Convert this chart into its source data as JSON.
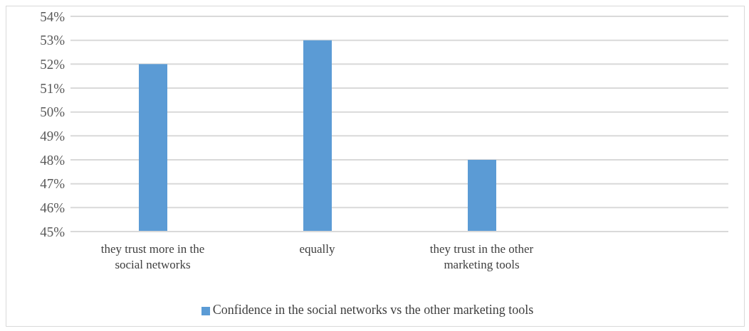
{
  "chart_data": {
    "type": "bar",
    "categories": [
      "they trust more in the social networks",
      "equally",
      "they trust in the other marketing tools",
      null
    ],
    "series": [
      {
        "name": "Confidence in the social networks vs the other marketing tools",
        "color": "#5b9bd5",
        "values": [
          52,
          53,
          48,
          null
        ]
      }
    ],
    "ylim": [
      45,
      54
    ],
    "yticks": [
      {
        "value": 45,
        "label": "45%"
      },
      {
        "value": 46,
        "label": "46%"
      },
      {
        "value": 47,
        "label": "47%"
      },
      {
        "value": 48,
        "label": "48%"
      },
      {
        "value": 49,
        "label": "49%"
      },
      {
        "value": 50,
        "label": "50%"
      },
      {
        "value": 51,
        "label": "51%"
      },
      {
        "value": 52,
        "label": "52%"
      },
      {
        "value": 53,
        "label": "53%"
      },
      {
        "value": 54,
        "label": "54%"
      }
    ],
    "grid": "y",
    "legend": "bottom"
  }
}
